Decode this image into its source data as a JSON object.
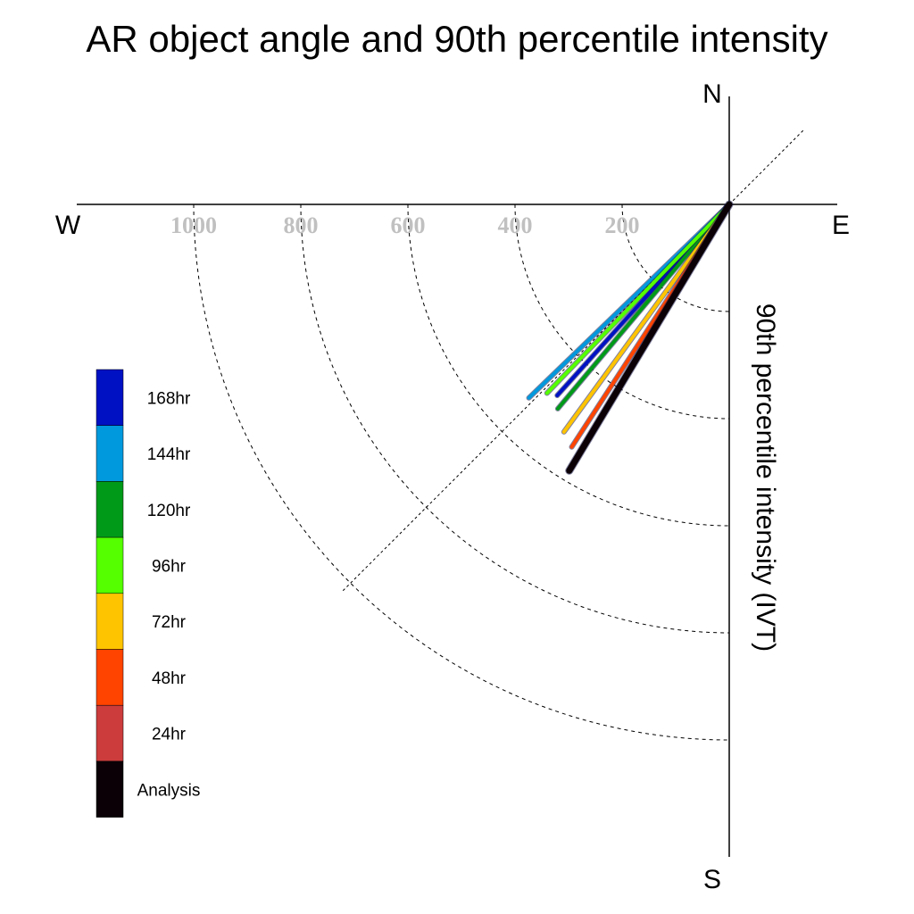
{
  "chart_data": {
    "type": "polar-vector",
    "title": "AR object angle and 90th percentile intensity",
    "radial_axis_label": "90th percentile intensity (IVT)",
    "compass": {
      "north": "N",
      "south": "S",
      "east": "E",
      "west": "W"
    },
    "radial_ticks": [
      200,
      400,
      600,
      800,
      1000
    ],
    "radial_tick_labels": [
      "200",
      "400",
      "600",
      "800",
      "1000"
    ],
    "radial_max": 1200,
    "angle_convention": "degrees counter-clockwise from East",
    "reference_line_angle_deg": 45,
    "series": [
      {
        "name": "168hr",
        "color": "#0011c3",
        "intensity": 480,
        "angle_deg": 228
      },
      {
        "name": "144hr",
        "color": "#0099dd",
        "intensity": 520,
        "angle_deg": 224
      },
      {
        "name": "120hr",
        "color": "#009a18",
        "intensity": 498,
        "angle_deg": 230
      },
      {
        "name": "96hr",
        "color": "#55ff00",
        "intensity": 490,
        "angle_deg": 226
      },
      {
        "name": "72hr",
        "color": "#ffc400",
        "intensity": 525,
        "angle_deg": 234
      },
      {
        "name": "48hr",
        "color": "#ff4400",
        "intensity": 540,
        "angle_deg": 237
      },
      {
        "name": "24hr",
        "color": "#cc3c3c",
        "intensity": 565,
        "angle_deg": 239
      },
      {
        "name": "Analysis",
        "color": "#0a0006",
        "intensity": 580,
        "angle_deg": 239
      }
    ],
    "legend": [
      "168hr",
      "144hr",
      "120hr",
      "96hr",
      "72hr",
      "48hr",
      "24hr",
      "Analysis"
    ],
    "legend_placement": "left"
  }
}
